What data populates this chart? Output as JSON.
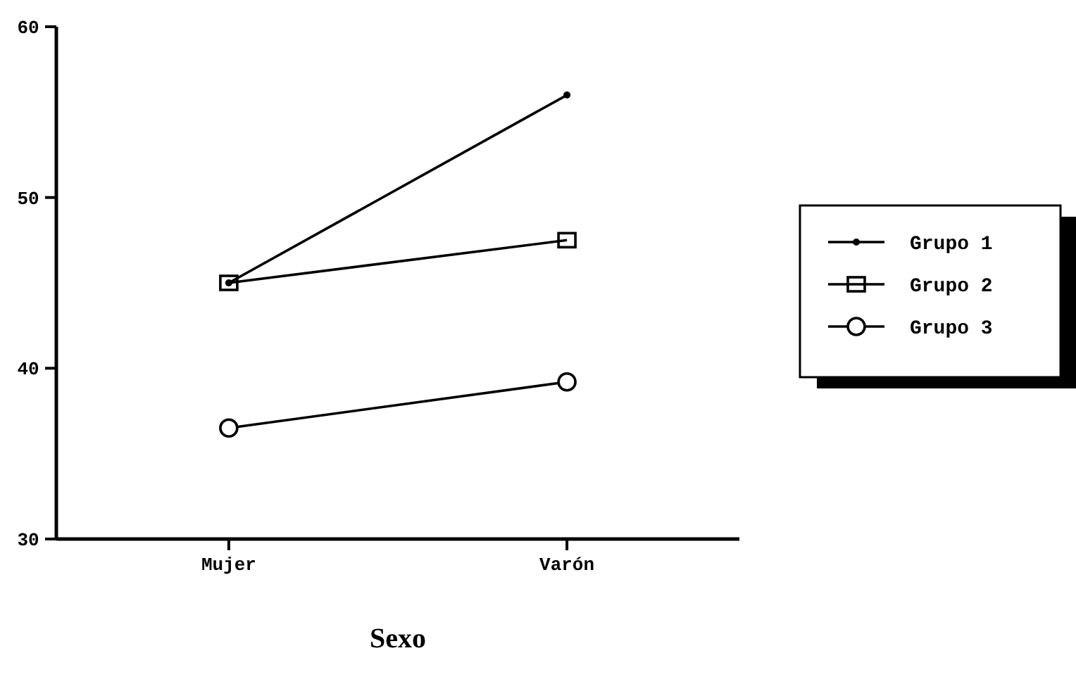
{
  "chart_data": {
    "type": "line",
    "xlabel": "Sexo",
    "categories": [
      "Mujer",
      "Varón"
    ],
    "series": [
      {
        "name": "Grupo 1",
        "color": "#000000",
        "marker": "circle",
        "values": [
          45,
          56
        ]
      },
      {
        "name": "Grupo 2",
        "color": "#000000",
        "marker": "square",
        "values": [
          45,
          47.5
        ]
      },
      {
        "name": "Grupo 3",
        "color": "#000000",
        "marker": "circle",
        "values": [
          36.5,
          39.2
        ]
      }
    ],
    "ylim": [
      30,
      60
    ],
    "yticks": [
      30,
      40,
      50,
      60
    ],
    "legend": "right",
    "grid": false,
    "line_style": "solid"
  }
}
